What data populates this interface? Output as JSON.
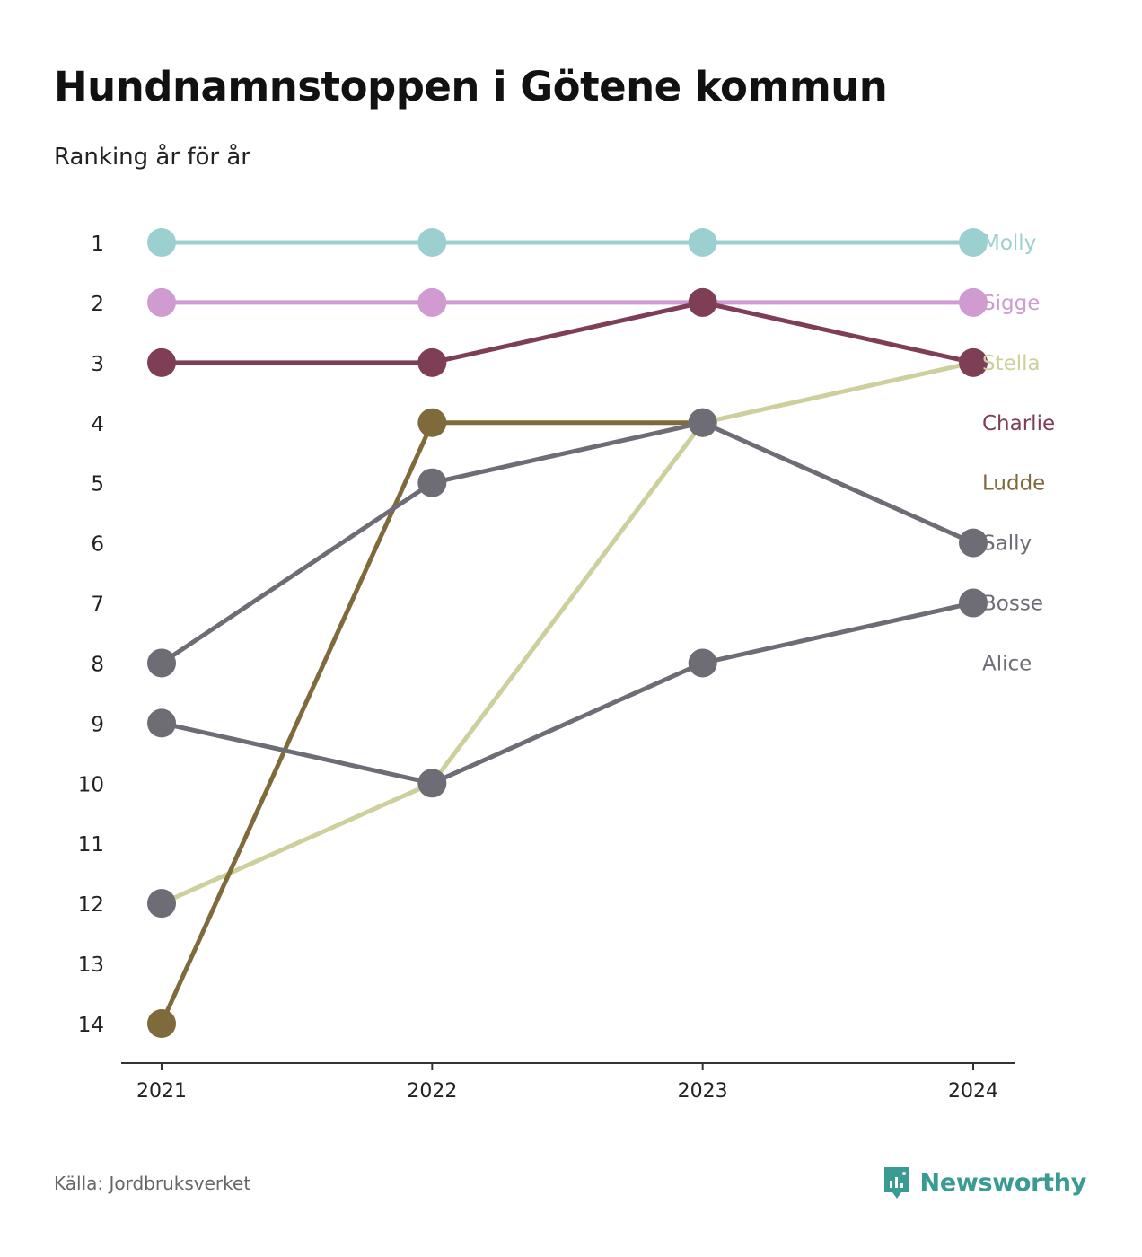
{
  "title": "Hundnamnstoppen i Götene kommun",
  "subtitle": "Ranking år för år",
  "source": "Källa: Jordbruksverket",
  "brand": {
    "name": "Newsworthy",
    "icon": "newsworthy-logo-icon",
    "color": "#3a9b92"
  },
  "chart_data": {
    "type": "line",
    "x": [
      "2021",
      "2022",
      "2023",
      "2024"
    ],
    "y_ticks": [
      "1",
      "2",
      "3",
      "4",
      "5",
      "6",
      "7",
      "8",
      "9",
      "10",
      "11",
      "12",
      "13",
      "14"
    ],
    "ylim": [
      1,
      14
    ],
    "y_reversed": true,
    "grid": false,
    "legend": "right",
    "series": [
      {
        "name": "Molly",
        "color": "#9ccfcf",
        "values": [
          1,
          1,
          1,
          1
        ]
      },
      {
        "name": "Sigge",
        "color": "#cf9bd1",
        "values": [
          2,
          2,
          2,
          2
        ]
      },
      {
        "name": "Stella",
        "color": "#cdd09c",
        "values": [
          12,
          10,
          4,
          3
        ]
      },
      {
        "name": "Charlie",
        "color": "#7e3e55",
        "values": [
          3,
          3,
          2,
          3
        ]
      },
      {
        "name": "Ludde",
        "color": "#7f6a3c",
        "values": [
          14,
          4,
          4,
          null
        ]
      },
      {
        "name": "Sally",
        "color": "#6e6d76",
        "values": [
          8,
          5,
          4,
          6
        ]
      },
      {
        "name": "Bosse",
        "color": "#6e6d76",
        "values": [
          12,
          null,
          null,
          null
        ]
      },
      {
        "name": "Alice",
        "color": "#6e6d76",
        "values": [
          9,
          10,
          8,
          7
        ]
      }
    ]
  }
}
